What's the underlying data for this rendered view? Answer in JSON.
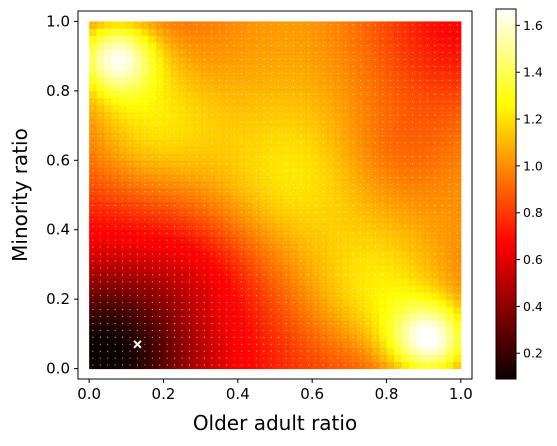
{
  "chart_data": {
    "type": "heatmap",
    "title": "",
    "xlabel": "Older adult ratio",
    "ylabel": "Minority ratio",
    "xlim": [
      -0.03,
      1.03
    ],
    "ylim": [
      -0.03,
      1.03
    ],
    "xticks": [
      0.0,
      0.2,
      0.4,
      0.6,
      0.8,
      1.0
    ],
    "xtick_labels": [
      "0.0",
      "0.2",
      "0.4",
      "0.6",
      "0.8",
      "1.0"
    ],
    "yticks": [
      0.0,
      0.2,
      0.4,
      0.6,
      0.8,
      1.0
    ],
    "ytick_labels": [
      "0.0",
      "0.2",
      "0.4",
      "0.6",
      "0.8",
      "1.0"
    ],
    "grid": {
      "start": 0.01,
      "end": 0.99,
      "step": 0.02
    },
    "colormap": "hot",
    "colorbar": {
      "range": [
        0.09,
        1.67
      ],
      "ticks": [
        0.2,
        0.4,
        0.6,
        0.8,
        1.0,
        1.2,
        1.4,
        1.6
      ],
      "tick_labels": [
        "0.2",
        "0.4",
        "0.6",
        "0.8",
        "1.0",
        "1.2",
        "1.4",
        "1.6"
      ]
    },
    "value_field": {
      "baseline": 0.52,
      "ramps": [
        {
          "along": "x",
          "from": 0.0,
          "to": 0.6,
          "weight": 0.25
        },
        {
          "along": "y",
          "from": 0.0,
          "to": 0.6,
          "weight": 0.28
        }
      ],
      "corner_dips": [
        {
          "x": 0.0,
          "y": 0.0,
          "depth": 0.42,
          "spread": 0.09
        },
        {
          "x": 1.0,
          "y": 1.0,
          "depth": 0.38,
          "spread": 0.07
        }
      ],
      "peaks": [
        {
          "x": 0.07,
          "y": 0.9,
          "height": 0.7,
          "spread": 0.012
        },
        {
          "x": 0.15,
          "y": 0.72,
          "height": 0.35,
          "spread": 0.04
        },
        {
          "x": 0.92,
          "y": 0.08,
          "height": 0.75,
          "spread": 0.012
        },
        {
          "x": 0.78,
          "y": 0.2,
          "height": 0.35,
          "spread": 0.04
        },
        {
          "x": 0.55,
          "y": 0.55,
          "height": 0.18,
          "spread": 0.06
        },
        {
          "x": 0.3,
          "y": 0.3,
          "height": -0.12,
          "spread": 0.03
        },
        {
          "x": 0.82,
          "y": 0.62,
          "height": -0.15,
          "spread": 0.03
        },
        {
          "x": 0.1,
          "y": 0.1,
          "height": -0.08,
          "spread": 0.02
        }
      ]
    },
    "highlight_point": {
      "x": 0.13,
      "y": 0.07,
      "marker": "x",
      "color": "#ffffff"
    }
  }
}
